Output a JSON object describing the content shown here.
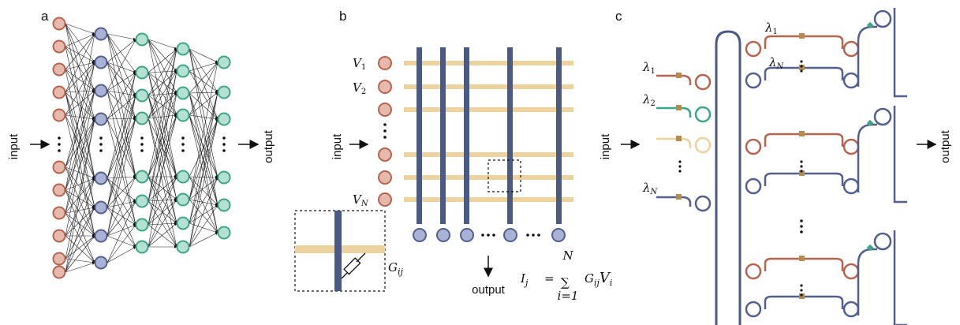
{
  "panels": {
    "a": {
      "letter": "a",
      "input": "input",
      "output": "output"
    },
    "b": {
      "letter": "b",
      "input": "input",
      "output": "output",
      "v1": "V",
      "v1_sub": "1",
      "v2": "V",
      "v2_sub": "2",
      "vn": "V",
      "vn_sub": "N",
      "g": "G",
      "g_sub": "ij",
      "eq_lhs": "I",
      "eq_lhs_sub": "j",
      "eq_eq": "=",
      "eq_sum": "∑",
      "eq_top": "N",
      "eq_bottom": "i=1",
      "eq_g": "G",
      "eq_g_sub": "ij",
      "eq_v": "V",
      "eq_v_sub": "i"
    },
    "c": {
      "letter": "c",
      "input": "input",
      "output": "output",
      "l1": "λ",
      "l1_sub": "1",
      "l2": "λ",
      "l2_sub": "2",
      "ln": "λ",
      "ln_sub": "N",
      "top_l1": "λ",
      "top_l1_sub": "1",
      "top_ln": "λ",
      "top_ln_sub": "N"
    }
  },
  "colors": {
    "red_fill": "#e7b9ad",
    "red_stroke": "#b4644f",
    "blue_fill": "#aab3d6",
    "blue_stroke": "#53608e",
    "green_fill": "#b5e0d2",
    "green_stroke": "#3fa587",
    "bar_tan": "#ecd29e",
    "bar_blue": "#4a5a80",
    "heater": "#b78c4a"
  }
}
